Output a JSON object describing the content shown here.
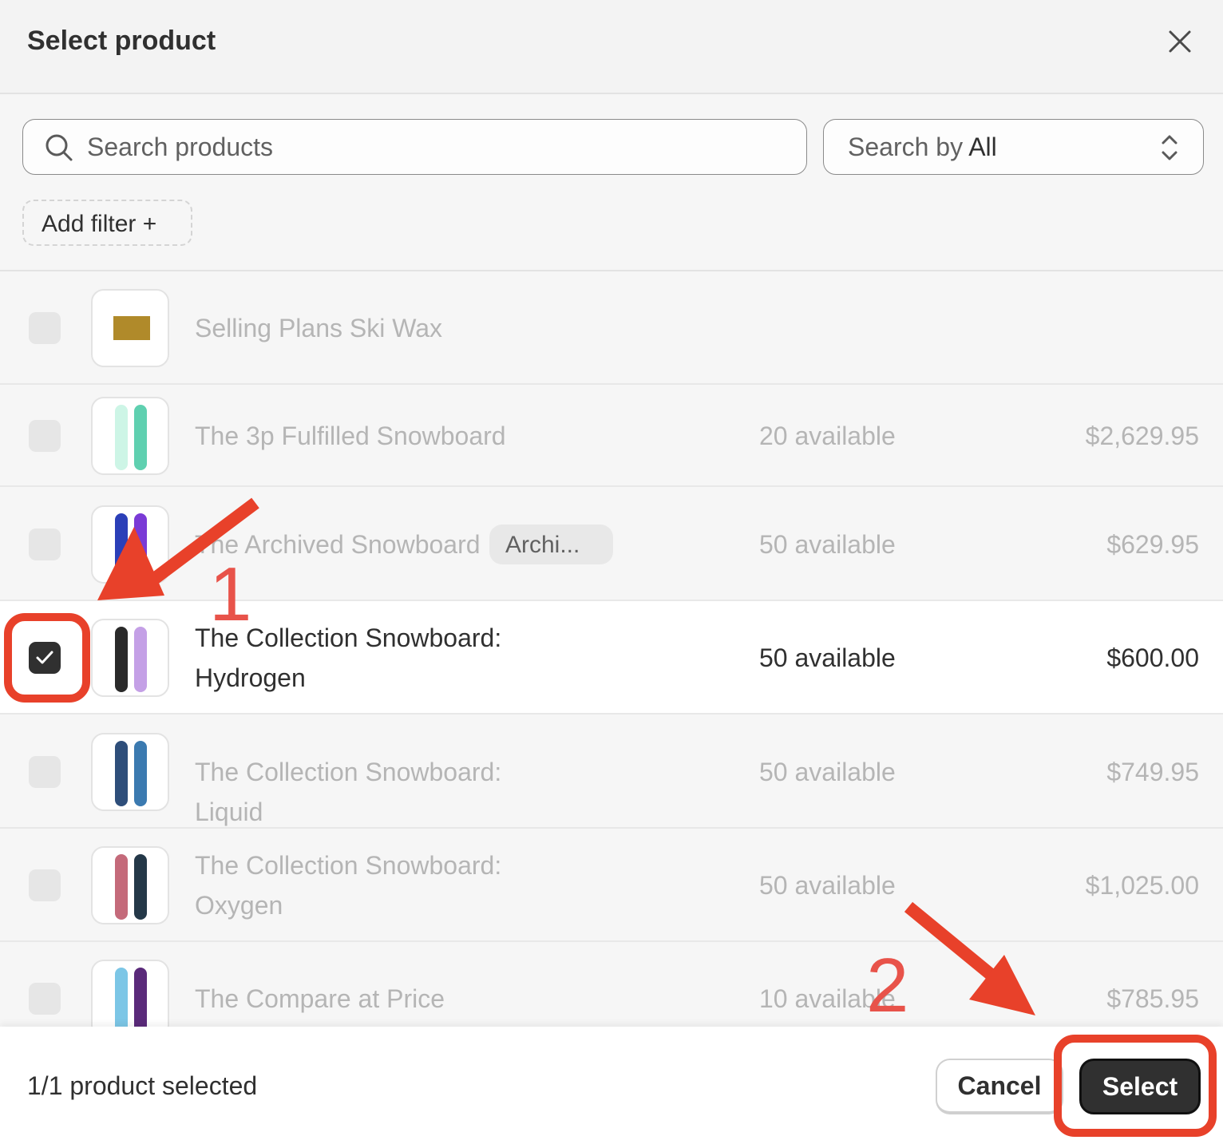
{
  "dialog": {
    "title": "Select product",
    "close_icon": "close-icon"
  },
  "search": {
    "placeholder": "Search products",
    "value": ""
  },
  "search_by": {
    "label": "Search by",
    "value": "All"
  },
  "add_filter": {
    "label": "Add filter +"
  },
  "products": [
    {
      "name": "Selling Plans Ski Wax",
      "available": "",
      "price": "",
      "badge": "",
      "selected": false,
      "colors": [
        "#b08a2a"
      ]
    },
    {
      "name": "The 3p Fulfilled Snowboard",
      "available": "20 available",
      "price": "$2,629.95",
      "badge": "",
      "selected": false,
      "colors": [
        "#cdf5e6",
        "#5fd0b0"
      ]
    },
    {
      "name": "The Archived Snowboard",
      "available": "50 available",
      "price": "$629.95",
      "badge": "Archi...",
      "selected": false,
      "colors": [
        "#2b3fb8",
        "#7a3ad6"
      ]
    },
    {
      "name": "The Collection Snowboard: Hydrogen",
      "available": "50 available",
      "price": "$600.00",
      "badge": "",
      "selected": true,
      "colors": [
        "#2a2a2a",
        "#c4a0e6"
      ]
    },
    {
      "name": "The Collection Snowboard: Liquid",
      "available": "50 available",
      "price": "$749.95",
      "badge": "",
      "selected": false,
      "colors": [
        "#2e4e7a",
        "#3b7ab0"
      ]
    },
    {
      "name": "The Collection Snowboard: Oxygen",
      "available": "50 available",
      "price": "$1,025.00",
      "badge": "",
      "selected": false,
      "colors": [
        "#c46a7a",
        "#243848"
      ]
    },
    {
      "name": "The Compare at Price Snowboard",
      "available": "10 available",
      "price": "$785.95",
      "badge": "",
      "selected": false,
      "colors": [
        "#7cc6e6",
        "#5a2a7a"
      ]
    }
  ],
  "footer": {
    "selection_count": "1/1 product selected",
    "cancel_label": "Cancel",
    "select_label": "Select"
  },
  "annotations": {
    "step1": "1",
    "step2": "2",
    "color": "#e8412a"
  }
}
